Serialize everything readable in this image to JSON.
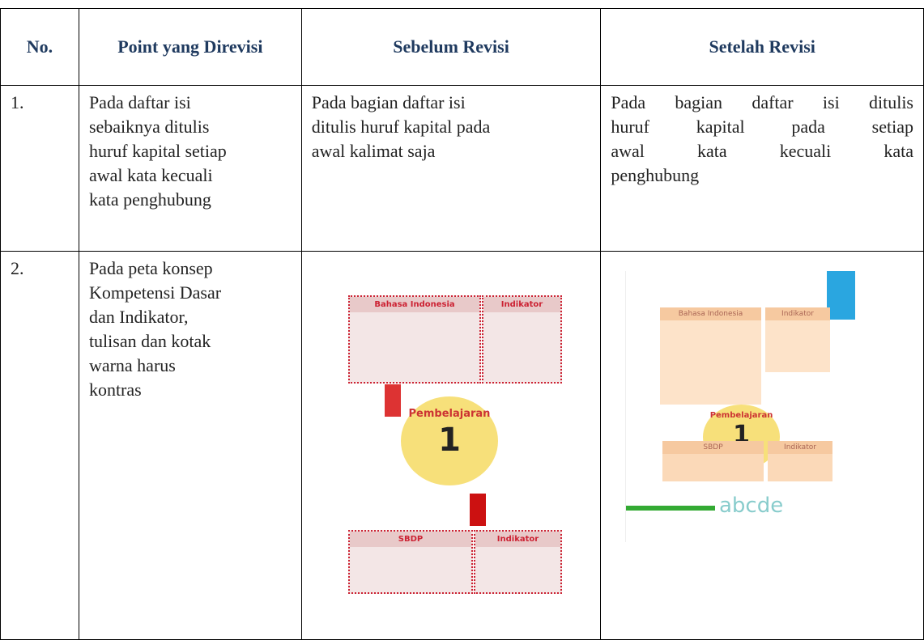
{
  "table": {
    "header": [
      "No.",
      "Point yang Direvisi",
      "Sebelum Revisi",
      "Setelah Revisi"
    ],
    "rows": [
      {
        "no": "1.",
        "point": [
          "Pada daftar isi",
          "sebaiknya ditulis",
          "huruf kapital setiap",
          "awal kata kecuali",
          "kata penghubung"
        ],
        "before": [
          "Pada bagian daftar isi",
          "ditulis huruf kapital pada",
          "awal kalimat saja"
        ],
        "after": [
          "Pada bagian daftar isi ditulis",
          "huruf kapital pada setiap",
          "awal kata kecuali kata",
          "penghubung"
        ]
      },
      {
        "no": "2.",
        "point": [
          "Pada peta konsep",
          "Kompetensi Dasar",
          "dan Indikator,",
          "tulisan dan kotak",
          "warna harus",
          "kontras"
        ],
        "before_image": {
          "box1": "Bahasa Indonesia",
          "box2": "Indikator",
          "center": "Pembelajaran",
          "number": "1",
          "box3": "SBDP",
          "box4": "Indikator"
        },
        "after_image": {
          "box1": "Bahasa Indonesia",
          "box2": "Indikator",
          "center": "Pembelajaran",
          "number": "1",
          "box3": "SBDP",
          "box4": "Indikator",
          "footer": "abcde"
        }
      }
    ]
  }
}
